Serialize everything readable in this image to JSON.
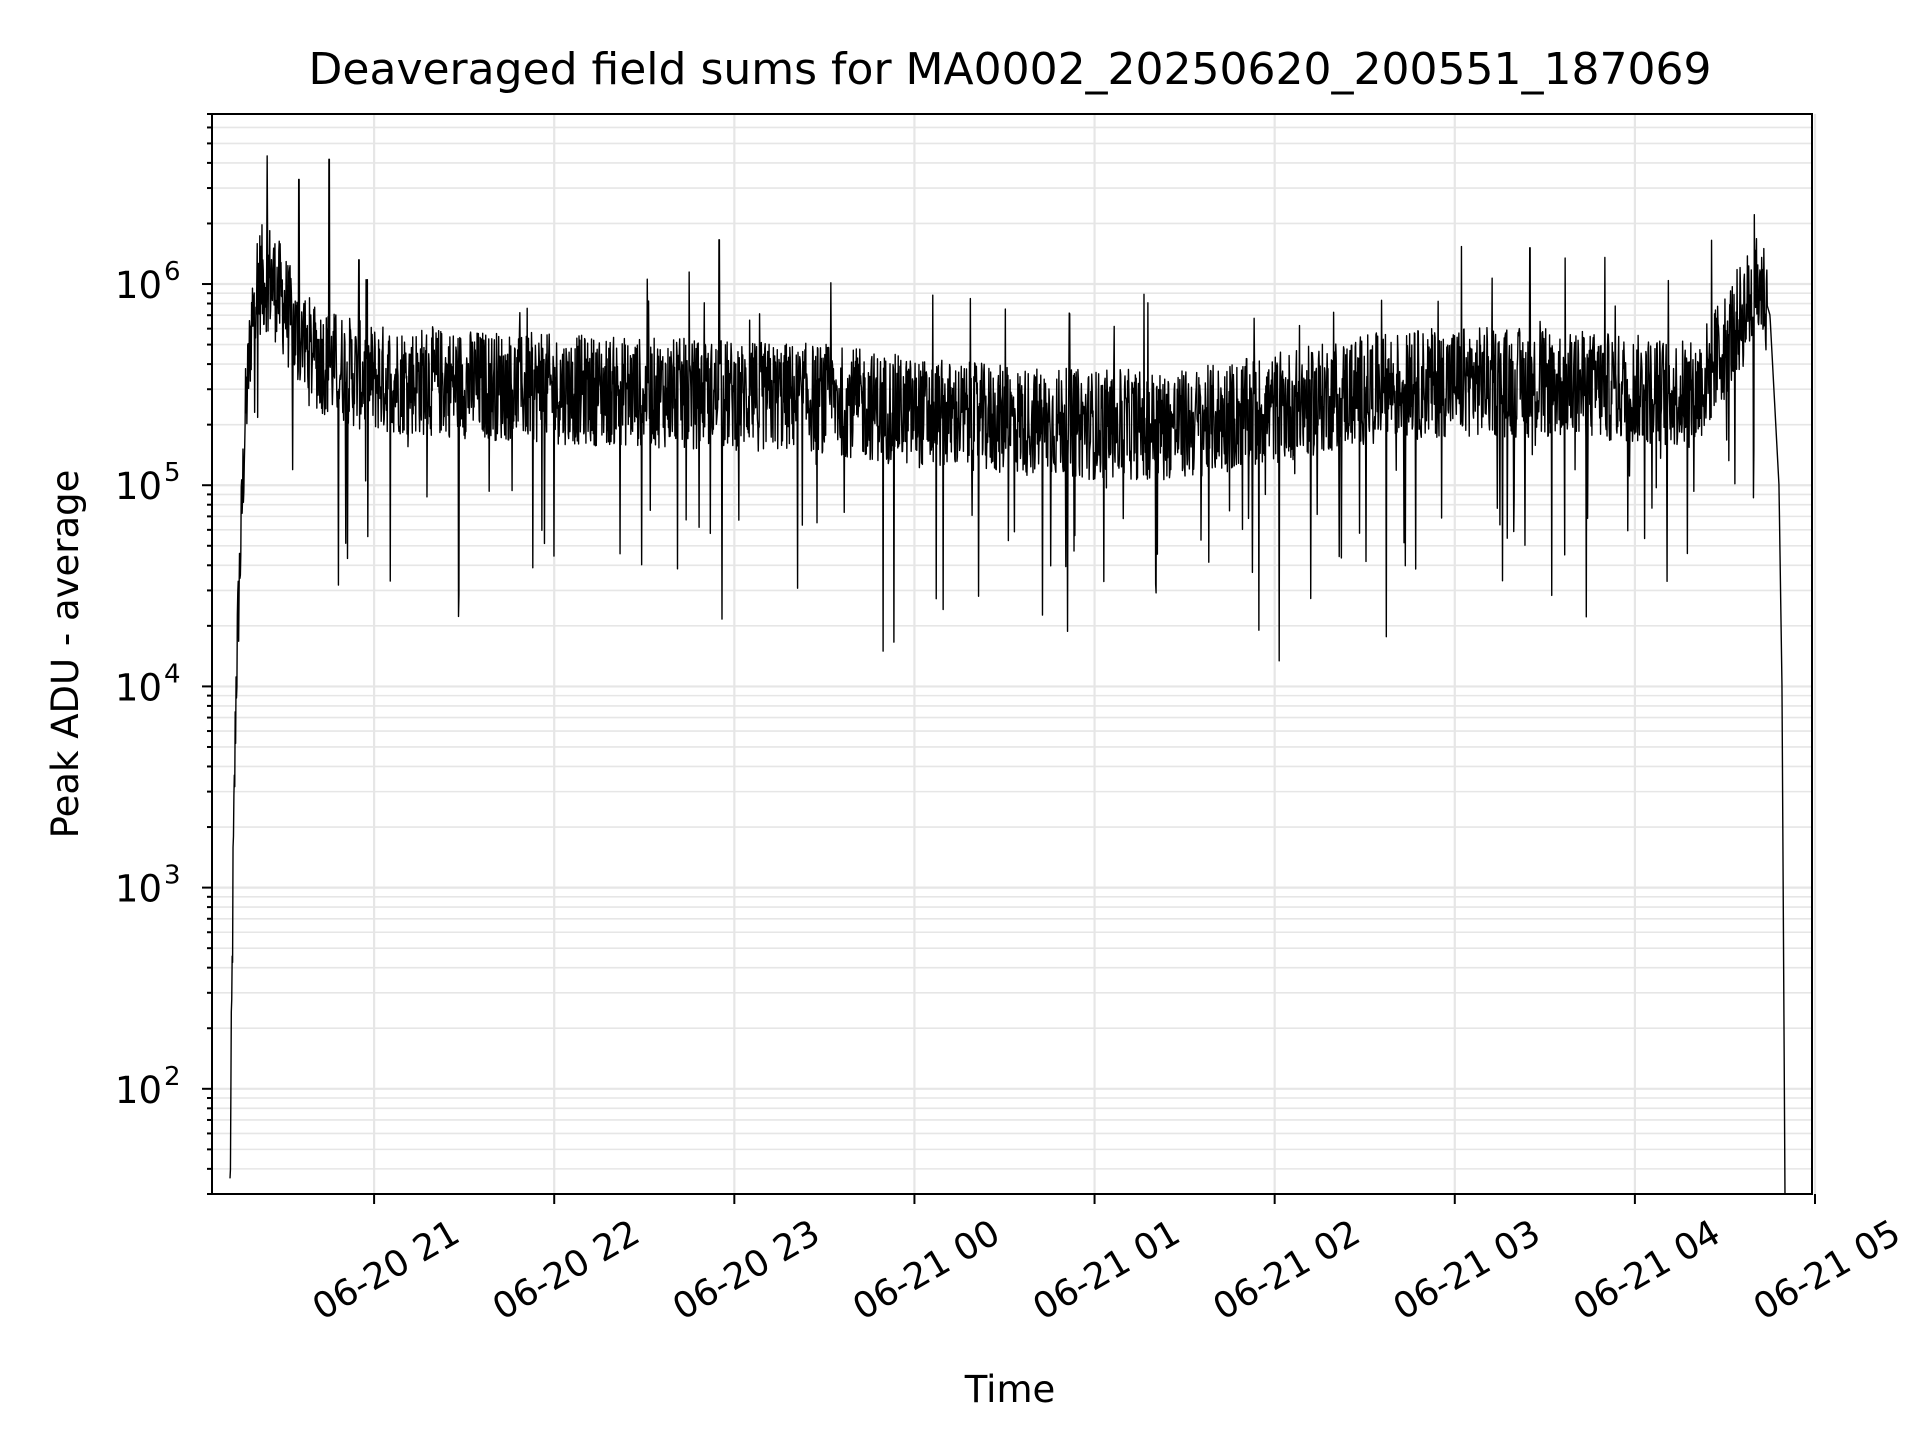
{
  "chart_data": {
    "type": "line",
    "title": "Deaveraged field sums for MA0002_20250620_200551_187069",
    "xlabel": "Time",
    "ylabel": "Peak ADU - average",
    "y_scale": "log",
    "ylim": [
      30,
      7000000
    ],
    "xlim": [
      "2025-06-20 20:06",
      "2025-06-21 04:59"
    ],
    "grid": true,
    "x_ticks": [
      "06-20 21",
      "06-20 22",
      "06-20 23",
      "06-21 00",
      "06-21 01",
      "06-21 02",
      "06-21 03",
      "06-21 04",
      "06-21 05"
    ],
    "y_ticks": [
      {
        "base": "10",
        "exp": "2"
      },
      {
        "base": "10",
        "exp": "3"
      },
      {
        "base": "10",
        "exp": "4"
      },
      {
        "base": "10",
        "exp": "5"
      },
      {
        "base": "10",
        "exp": "6"
      }
    ],
    "line_color": "#000000",
    "series": [
      {
        "x": [
          "2025-06-20 20:12",
          "2025-06-20 20:13",
          "2025-06-20 20:14",
          "2025-06-20 20:15",
          "2025-06-20 20:17",
          "2025-06-20 20:20",
          "2025-06-20 20:25",
          "2025-06-20 20:30",
          "2025-06-20 20:35",
          "2025-06-20 20:40",
          "2025-06-20 20:45",
          "2025-06-20 20:50",
          "2025-06-20 20:55",
          "2025-06-20 21:00",
          "2025-06-20 21:30",
          "2025-06-20 22:00",
          "2025-06-20 22:30",
          "2025-06-20 23:00",
          "2025-06-20 23:30",
          "2025-06-21 00:00",
          "2025-06-21 00:30",
          "2025-06-21 01:00",
          "2025-06-21 01:30",
          "2025-06-21 02:00",
          "2025-06-21 02:30",
          "2025-06-21 03:00",
          "2025-06-21 03:30",
          "2025-06-21 04:00",
          "2025-06-21 04:20",
          "2025-06-21 04:30",
          "2025-06-21 04:38",
          "2025-06-21 04:42",
          "2025-06-21 04:45",
          "2025-06-21 04:48",
          "2025-06-21 04:49",
          "2025-06-21 04:50"
        ],
        "y": [
          30,
          1000,
          10000,
          30000,
          200000,
          1000000,
          1100000,
          800000,
          500000,
          450000,
          400000,
          380000,
          350000,
          340000,
          320000,
          300000,
          290000,
          280000,
          270000,
          230000,
          210000,
          200000,
          200000,
          240000,
          300000,
          330000,
          320000,
          300000,
          280000,
          500000,
          800000,
          1000000,
          700000,
          100000,
          10000,
          30
        ],
        "noise": "dense high-frequency fluctuation; spikes up to ~4e6 near 20:45 and 1.6e6 near 22:55; dips down to ~1.5e4"
      }
    ]
  }
}
